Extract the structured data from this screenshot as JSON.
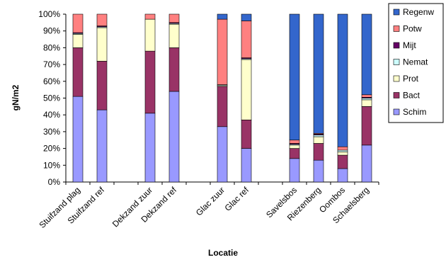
{
  "chart_data": {
    "type": "stacked-bar",
    "x_label": "Locatie",
    "y_label": "gN/m2",
    "categories": [
      "Stuifzand plag",
      "Stuifzand ref",
      null,
      "Dekzand zuur",
      "Dekzand ref",
      null,
      "Glac zuur",
      "Glac ref",
      null,
      "Savelsbos",
      "Riezenberg",
      "Oombos",
      "Schaelsberg"
    ],
    "series": [
      {
        "name": "Schim",
        "color": "#9999ff",
        "values": [
          51,
          43,
          null,
          41,
          54,
          null,
          33,
          20,
          null,
          14,
          13,
          8,
          22
        ]
      },
      {
        "name": "Bact",
        "color": "#993366",
        "values": [
          29,
          29,
          null,
          37,
          26,
          null,
          24,
          17,
          null,
          6,
          10,
          8,
          23
        ]
      },
      {
        "name": "Prot",
        "color": "#ffffcc",
        "values": [
          8,
          20,
          null,
          19,
          14,
          null,
          0.5,
          36,
          null,
          2,
          4,
          2,
          4
        ]
      },
      {
        "name": "Nemat",
        "color": "#ccffff",
        "values": [
          0.5,
          0.5,
          null,
          0,
          0.5,
          null,
          0.5,
          0.5,
          null,
          0.5,
          1,
          1,
          1
        ]
      },
      {
        "name": "Mijt",
        "color": "#660066",
        "values": [
          0.5,
          0.5,
          null,
          0,
          0.5,
          null,
          0,
          0.5,
          null,
          0.5,
          0.5,
          0,
          0.5
        ]
      },
      {
        "name": "Potw",
        "color": "#ff8080",
        "values": [
          11,
          7,
          null,
          3,
          5,
          null,
          39,
          22,
          null,
          2,
          0.5,
          2,
          1.5
        ]
      },
      {
        "name": "Regenw",
        "color": "#3366cc",
        "values": [
          0,
          0,
          null,
          0,
          0,
          null,
          3,
          4,
          null,
          75,
          71,
          79,
          48
        ]
      }
    ],
    "ylim": [
      0,
      100
    ],
    "yticks": [
      {
        "value": 0,
        "label": "0%"
      },
      {
        "value": 10,
        "label": "10%"
      },
      {
        "value": 20,
        "label": "20%"
      },
      {
        "value": 30,
        "label": "30%"
      },
      {
        "value": 40,
        "label": "40%"
      },
      {
        "value": 50,
        "label": "50%"
      },
      {
        "value": 60,
        "label": "60%"
      },
      {
        "value": 70,
        "label": "70%"
      },
      {
        "value": 80,
        "label": "80%"
      },
      {
        "value": 90,
        "label": "90%"
      },
      {
        "value": 100,
        "label": "100%"
      }
    ],
    "grid": false,
    "legend": "right"
  }
}
